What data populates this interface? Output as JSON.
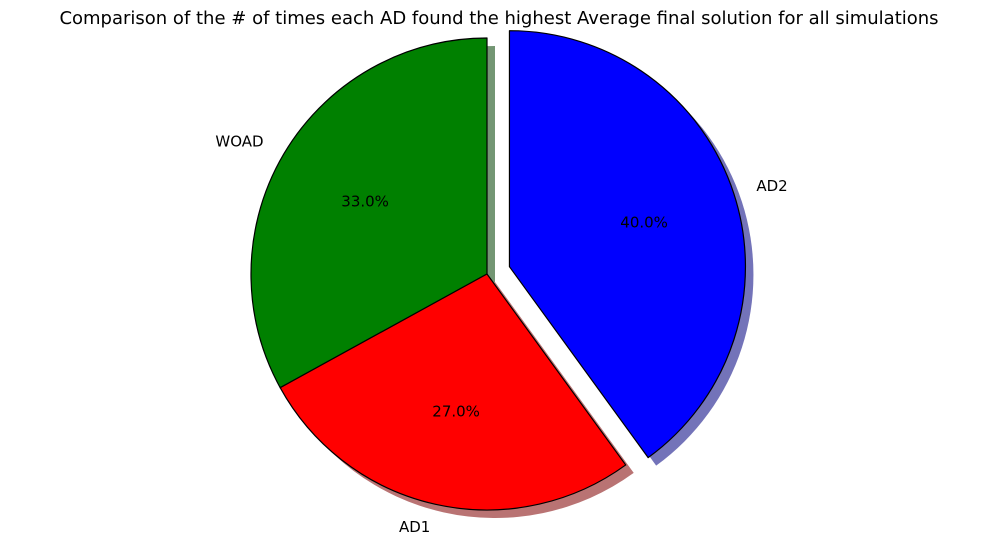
{
  "chart_data": {
    "type": "pie",
    "title": "Comparison of the # of times each AD found the highest Average final solution for all simulations",
    "categories": [
      "WOAD",
      "AD1",
      "AD2"
    ],
    "values": [
      33.0,
      27.0,
      40.0
    ],
    "percent_labels": [
      "33.0%",
      "27.0%",
      "40.0%"
    ],
    "colors": [
      "#008000",
      "#ff0000",
      "#0000ff"
    ],
    "explode": [
      0,
      0,
      0.1
    ],
    "shadow": true,
    "start_angle": 90,
    "direction": "counterclockwise"
  }
}
